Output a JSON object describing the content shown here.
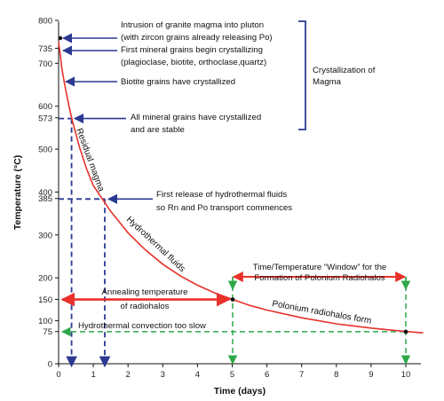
{
  "chart_data": {
    "type": "line",
    "xlabel": "Time (days)",
    "ylabel": "Temperature (°C)",
    "xlim": [
      0,
      10.5
    ],
    "ylim": [
      0,
      800
    ],
    "x_ticks": [
      "0",
      "1",
      "2",
      "3",
      "4",
      "5",
      "6",
      "7",
      "8",
      "9",
      "10"
    ],
    "y_ticks": [
      "0",
      "100",
      "200",
      "300",
      "400",
      "500",
      "600",
      "700",
      "800"
    ],
    "y_special_ticks": [
      "735",
      "573",
      "385",
      "150",
      "75"
    ],
    "cooling_curve": {
      "x": [
        0,
        0.1,
        0.2,
        0.3,
        0.4,
        0.6,
        0.8,
        1.0,
        1.25,
        1.5,
        2.0,
        2.5,
        3.0,
        3.5,
        4.0,
        4.5,
        5.0,
        5.5,
        6.0,
        7.0,
        8.0,
        9.0,
        10.0,
        10.5
      ],
      "y": [
        750,
        685,
        640,
        600,
        565,
        505,
        455,
        415,
        385,
        355,
        305,
        265,
        232,
        205,
        183,
        165,
        150,
        136,
        125,
        107,
        93,
        83,
        75,
        72
      ]
    },
    "events": [
      {
        "x": 0,
        "y": 760,
        "text": "Intrusion of granite magma into pluton (with zircon grains already releasing Po)"
      },
      {
        "x": 0,
        "y": 735,
        "text": "First mineral grains begin crystallizing (plagioclase, biotite, orthoclase, quartz)"
      },
      {
        "x": 0.05,
        "y": 655,
        "text": "Biotite grains have crystallized"
      },
      {
        "x": 0.3,
        "y": 573,
        "text": "All mineral grains have crystallized and are stable"
      },
      {
        "x": 1.25,
        "y": 385,
        "text": "First release of hydrothermal fluids so Rn and Po transport commences"
      },
      {
        "x": 5,
        "y": 150,
        "text": "Annealing temperature of radiohalos"
      },
      {
        "x": 0,
        "y": 75,
        "text": "Hydrothermal convection too slow"
      }
    ],
    "window": {
      "x_start": 5,
      "x_end": 10,
      "y_top": 200,
      "y_bottom": 75,
      "text": "Time/Temperature \"Window\" for the Formation of Polonium Radiohalos"
    }
  },
  "labels": {
    "intrusion_line1": "Intrusion of granite magma into pluton",
    "intrusion_line2": "(with zircon grains already releasing Po)",
    "first_line1": "First mineral grains begin crystallizing",
    "first_line2": "(plagioclase, biotite, orthoclase,quartz)",
    "biotite": "Biotite grains have crystallized",
    "allgrains_line1": "All mineral grains have crystallized",
    "allgrains_line2": "and are stable",
    "crystallization_line1": "Crystallization of",
    "crystallization_line2": "Magma",
    "hydro_line1": "First release of hydrothermal fluids",
    "hydro_line2": "so Rn and Po transport commences",
    "annealing_line1": "Annealing temperature",
    "annealing_line2": "of radiohalos",
    "convection": "Hydrothermal convection too slow",
    "window_line1": "Time/Temperature “Window” for the",
    "window_line2": "Formation of Polonium Radiohalos",
    "residual": "Residual magma",
    "hydrothermal": "Hydrothermal fluids",
    "polonium": "Polonium radiohalos form"
  },
  "colors": {
    "curve": "#e8312a",
    "blue": "#2b3990",
    "green": "#2ea84a",
    "red_arrow": "#e8312a",
    "axis": "#111111"
  }
}
